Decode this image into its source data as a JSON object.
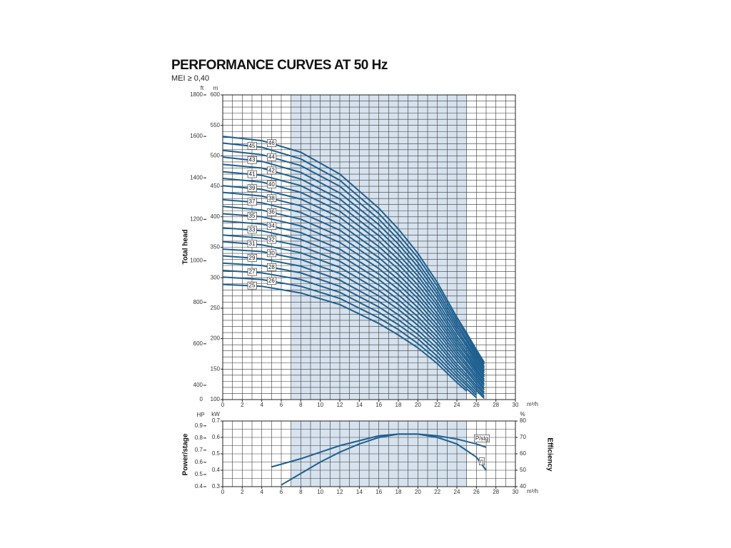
{
  "chart_data": [
    {
      "type": "line",
      "title": "PERFORMANCE CURVES AT 50 Hz",
      "subtitle": "MEI ≥ 0,40",
      "ylabel": "Total head",
      "xlim": [
        0,
        30
      ],
      "xticks": [
        0,
        2,
        4,
        6,
        8,
        10,
        12,
        14,
        16,
        18,
        20,
        22,
        24,
        26,
        28,
        30
      ],
      "x_unit": "m³/h",
      "ylim": [
        100,
        600
      ],
      "yticks": [
        100,
        150,
        200,
        250,
        300,
        350,
        400,
        450,
        500,
        550,
        600
      ],
      "y_unit": "m",
      "y2lim": [
        331,
        1800
      ],
      "y2ticks": [
        400,
        600,
        800,
        1000,
        1200,
        1400,
        1600,
        1800
      ],
      "y2_unit": "ft",
      "y2_bottom_label": "0",
      "x_minor_step": 1,
      "y_minor_step": 10,
      "grid": true,
      "highlight_xlim": [
        7,
        25
      ],
      "color": "#1d5f8f",
      "x": [
        0,
        4,
        8,
        12,
        16,
        18,
        20,
        22,
        24,
        25,
        26,
        26.8
      ],
      "series": [
        {
          "name": "25",
          "values": [
            289,
            286,
            275,
            256,
            225,
            206,
            185,
            159,
            128,
            114,
            null,
            null
          ]
        },
        {
          "name": "26",
          "values": [
            301,
            297,
            286,
            266,
            234,
            215,
            192,
            165,
            133,
            118,
            103,
            null
          ]
        },
        {
          "name": "27",
          "values": [
            312,
            308,
            297,
            276,
            243,
            223,
            200,
            171,
            138,
            123,
            107,
            null
          ]
        },
        {
          "name": "28",
          "values": [
            324,
            320,
            308,
            286,
            252,
            231,
            207,
            178,
            143,
            127,
            111,
            null
          ]
        },
        {
          "name": "29",
          "values": [
            336,
            331,
            319,
            296,
            261,
            239,
            214,
            184,
            148,
            132,
            115,
            102
          ]
        },
        {
          "name": "30",
          "values": [
            347,
            343,
            330,
            307,
            270,
            248,
            222,
            191,
            153,
            137,
            119,
            105
          ]
        },
        {
          "name": "31",
          "values": [
            359,
            354,
            341,
            317,
            279,
            256,
            229,
            197,
            158,
            141,
            123,
            109
          ]
        },
        {
          "name": "32",
          "values": [
            370,
            365,
            352,
            327,
            288,
            264,
            236,
            203,
            164,
            146,
            127,
            112
          ]
        },
        {
          "name": "33",
          "values": [
            382,
            377,
            363,
            337,
            297,
            272,
            244,
            210,
            169,
            150,
            131,
            116
          ]
        },
        {
          "name": "34",
          "values": [
            393,
            388,
            374,
            347,
            306,
            281,
            251,
            216,
            174,
            155,
            135,
            119
          ]
        },
        {
          "name": "35",
          "values": [
            405,
            400,
            385,
            358,
            315,
            289,
            259,
            222,
            179,
            159,
            139,
            123
          ]
        },
        {
          "name": "36",
          "values": [
            417,
            411,
            396,
            368,
            324,
            297,
            266,
            229,
            184,
            164,
            143,
            126
          ]
        },
        {
          "name": "37",
          "values": [
            428,
            423,
            407,
            378,
            333,
            305,
            273,
            235,
            189,
            168,
            147,
            130
          ]
        },
        {
          "name": "38",
          "values": [
            440,
            434,
            418,
            388,
            342,
            314,
            281,
            241,
            194,
            173,
            150,
            133
          ]
        },
        {
          "name": "39",
          "values": [
            451,
            445,
            429,
            399,
            351,
            322,
            288,
            248,
            199,
            177,
            154,
            137
          ]
        },
        {
          "name": "40",
          "values": [
            463,
            457,
            440,
            409,
            360,
            330,
            296,
            254,
            204,
            182,
            158,
            140
          ]
        },
        {
          "name": "41",
          "values": [
            474,
            468,
            451,
            419,
            369,
            338,
            303,
            260,
            210,
            187,
            162,
            144
          ]
        },
        {
          "name": "42",
          "values": [
            486,
            480,
            462,
            429,
            378,
            347,
            310,
            267,
            215,
            191,
            166,
            147
          ]
        },
        {
          "name": "43",
          "values": [
            498,
            491,
            473,
            439,
            387,
            355,
            318,
            273,
            220,
            196,
            170,
            151
          ]
        },
        {
          "name": "44",
          "values": [
            509,
            502,
            484,
            450,
            396,
            363,
            325,
            279,
            225,
            200,
            174,
            154
          ]
        },
        {
          "name": "45",
          "values": [
            521,
            514,
            495,
            460,
            405,
            371,
            333,
            286,
            230,
            205,
            178,
            158
          ]
        },
        {
          "name": "46",
          "values": [
            532,
            525,
            506,
            470,
            414,
            380,
            340,
            292,
            235,
            209,
            182,
            161
          ]
        }
      ]
    },
    {
      "type": "line",
      "ylabel": "Power/stage",
      "y2label": "Efficiency",
      "xlim": [
        0,
        30
      ],
      "xticks": [
        0,
        2,
        4,
        6,
        8,
        10,
        12,
        14,
        16,
        18,
        20,
        22,
        24,
        26,
        28,
        30
      ],
      "x_unit": "m³/h",
      "ylim": [
        0.3,
        0.7
      ],
      "yticks": [
        0.3,
        0.4,
        0.5,
        0.6,
        0.7
      ],
      "y_unit": "kW",
      "hp_lim": [
        0.4,
        0.94
      ],
      "hp_ticks": [
        0.4,
        0.5,
        0.6,
        0.7,
        0.8,
        0.9
      ],
      "hp_unit": "HP",
      "y2lim": [
        40,
        80
      ],
      "y2ticks": [
        40,
        50,
        60,
        70,
        80
      ],
      "y2_unit": "%",
      "x_minor_step": 1,
      "y_minor_step": 0.05,
      "grid": true,
      "highlight_xlim": [
        7,
        25
      ],
      "color": "#1d5f8f",
      "series": [
        {
          "name": "P/stg",
          "x": [
            5,
            8,
            10,
            12,
            14,
            16,
            18,
            20,
            22,
            24,
            26,
            27
          ],
          "values": [
            0.42,
            0.47,
            0.51,
            0.55,
            0.58,
            0.61,
            0.62,
            0.62,
            0.61,
            0.59,
            0.56,
            0.54
          ]
        },
        {
          "name": "η",
          "axis": "y2",
          "x": [
            6,
            8,
            10,
            12,
            14,
            16,
            18,
            20,
            22,
            24,
            26,
            27
          ],
          "values": [
            41,
            48,
            55,
            61,
            66,
            70,
            72,
            72,
            70,
            66,
            58,
            50
          ]
        }
      ]
    }
  ]
}
